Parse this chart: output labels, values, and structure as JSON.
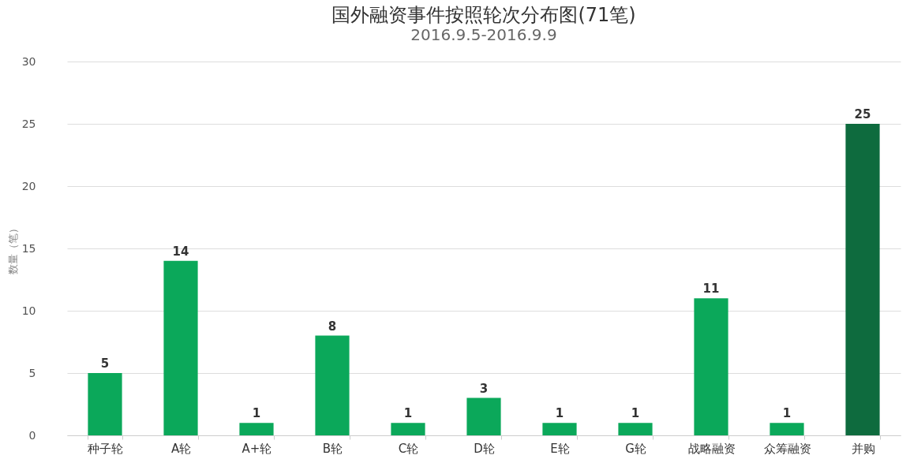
{
  "chart_data": {
    "type": "bar",
    "title": "国外融资事件按照轮次分布图(71笔)",
    "subtitle": "2016.9.5-2016.9.9",
    "ylabel": "数量（笔）",
    "categories": [
      "种子轮",
      "A轮",
      "A+轮",
      "B轮",
      "C轮",
      "D轮",
      "E轮",
      "G轮",
      "战略融资",
      "众筹融资",
      "并购"
    ],
    "values": [
      5,
      14,
      1,
      8,
      1,
      3,
      1,
      1,
      11,
      1,
      25
    ],
    "colors": [
      "#0ba85a",
      "#0ba85a",
      "#0ba85a",
      "#0ba85a",
      "#0ba85a",
      "#0ba85a",
      "#0ba85a",
      "#0ba85a",
      "#0ba85a",
      "#0ba85a",
      "#0e6b3e"
    ],
    "ylim": [
      0,
      30
    ],
    "yticks": [
      0,
      5,
      10,
      15,
      20,
      25,
      30
    ],
    "grid": "y",
    "data_labels": true
  }
}
